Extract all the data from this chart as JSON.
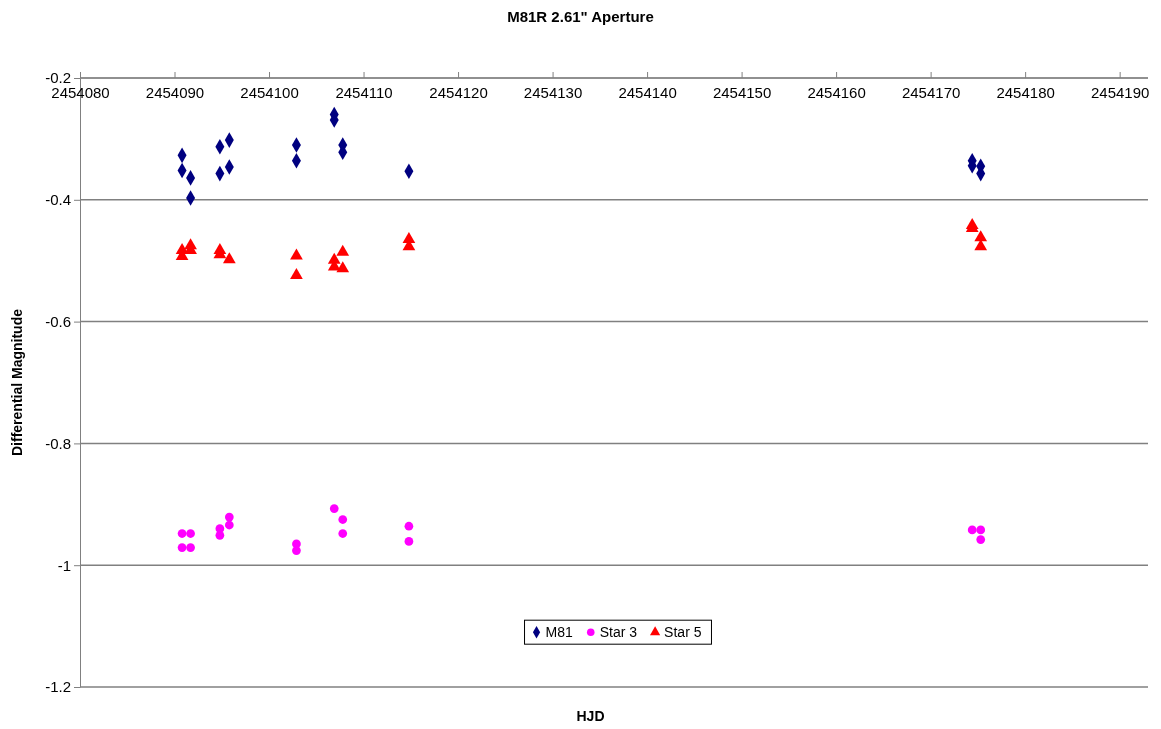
{
  "chart_data": {
    "type": "scatter",
    "title": "M81R 2.61\" Aperture",
    "xlabel": "HJD",
    "ylabel": "Differential Magnitude",
    "xlim": [
      2454080,
      2454193
    ],
    "xticks": [
      2454080,
      2454090,
      2454100,
      2454110,
      2454120,
      2454130,
      2454140,
      2454150,
      2454160,
      2454170,
      2454180,
      2454190
    ],
    "ylim": [
      -1.2,
      -0.2
    ],
    "yticks": [
      -1.2,
      -1,
      -0.8,
      -0.6,
      -0.4,
      -0.2
    ],
    "grid": "y",
    "legend": "bottom",
    "series": [
      {
        "name": "M81",
        "color": "#000080",
        "marker": "diamond",
        "x": [
          2454090.8,
          2454090.8,
          2454091.7,
          2454091.7,
          2454094.8,
          2454094.8,
          2454095.8,
          2454095.8,
          2454102.9,
          2454102.9,
          2454106.9,
          2454106.9,
          2454107.8,
          2454107.8,
          2454114.8,
          2454174.4,
          2454174.4,
          2454175.3,
          2454175.3
        ],
        "values": [
          -0.327,
          -0.352,
          -0.364,
          -0.397,
          -0.313,
          -0.357,
          -0.302,
          -0.346,
          -0.31,
          -0.336,
          -0.26,
          -0.269,
          -0.31,
          -0.322,
          -0.353,
          -0.336,
          -0.344,
          -0.345,
          -0.357
        ]
      },
      {
        "name": "Star 3",
        "color": "#ff00ff",
        "marker": "circle",
        "x": [
          2454090.8,
          2454090.8,
          2454091.7,
          2454091.7,
          2454094.8,
          2454094.8,
          2454095.8,
          2454095.8,
          2454102.9,
          2454102.9,
          2454106.9,
          2454107.8,
          2454107.8,
          2454114.8,
          2454114.8,
          2454174.4,
          2454175.3,
          2454175.3
        ],
        "values": [
          -0.948,
          -0.971,
          -0.948,
          -0.971,
          -0.94,
          -0.951,
          -0.921,
          -0.934,
          -0.965,
          -0.976,
          -0.907,
          -0.925,
          -0.948,
          -0.936,
          -0.961,
          -0.942,
          -0.942,
          -0.958
        ]
      },
      {
        "name": "Star 5",
        "color": "#ff0000",
        "marker": "triangle",
        "x": [
          2454090.8,
          2454090.8,
          2454091.7,
          2454091.7,
          2454094.8,
          2454094.8,
          2454095.8,
          2454102.9,
          2454102.9,
          2454106.9,
          2454106.9,
          2454107.8,
          2454107.8,
          2454114.8,
          2454114.8,
          2454174.4,
          2454174.4,
          2454175.3,
          2454175.3
        ],
        "values": [
          -0.483,
          -0.493,
          -0.475,
          -0.483,
          -0.483,
          -0.49,
          -0.498,
          -0.492,
          -0.524,
          -0.499,
          -0.51,
          -0.486,
          -0.513,
          -0.465,
          -0.477,
          -0.442,
          -0.447,
          -0.462,
          -0.477
        ]
      }
    ]
  }
}
